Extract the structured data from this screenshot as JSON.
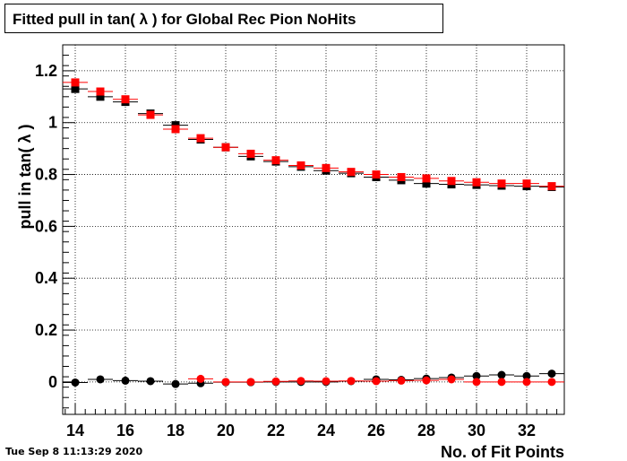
{
  "title": "Fitted pull in tan( λ ) for Global Rec Pion NoHits",
  "timestamp": "Tue Sep  8 11:13:29 2020",
  "chart_data": {
    "type": "scatter",
    "title": "Fitted pull in tan( λ ) for Global Rec Pion NoHits",
    "xlabel": "No. of Fit Points",
    "ylabel": "pull in tan( λ )",
    "xlim": [
      13.5,
      33.5
    ],
    "ylim": [
      -0.125,
      1.3
    ],
    "x_ticks": [
      14,
      16,
      18,
      20,
      22,
      24,
      26,
      28,
      30,
      32
    ],
    "y_ticks": [
      0,
      0.2,
      0.4,
      0.6,
      0.8,
      1,
      1.2
    ],
    "x_tick_labels": [
      "14",
      "16",
      "18",
      "20",
      "22",
      "24",
      "26",
      "28",
      "30",
      "32"
    ],
    "y_tick_labels": [
      "0",
      "0.2",
      "0.4",
      "0.6",
      "0.8",
      "1",
      "1.2"
    ],
    "grid": true,
    "x": [
      14,
      15,
      16,
      17,
      18,
      19,
      20,
      21,
      22,
      23,
      24,
      25,
      26,
      27,
      28,
      29,
      30,
      31,
      32,
      33
    ],
    "series": [
      {
        "marker": "square",
        "color": "#000000",
        "values": [
          1.13,
          1.1,
          1.08,
          1.035,
          0.99,
          0.935,
          0.905,
          0.87,
          0.85,
          0.83,
          0.815,
          0.805,
          0.79,
          0.778,
          0.765,
          0.762,
          0.76,
          0.757,
          0.755,
          0.752
        ]
      },
      {
        "marker": "square",
        "color": "#ff0000",
        "values": [
          1.155,
          1.12,
          1.09,
          1.03,
          0.975,
          0.94,
          0.905,
          0.88,
          0.855,
          0.835,
          0.825,
          0.81,
          0.8,
          0.79,
          0.785,
          0.775,
          0.77,
          0.765,
          0.765,
          0.755
        ]
      },
      {
        "marker": "circle",
        "color": "#000000",
        "values": [
          -0.002,
          0.01,
          0.005,
          0.003,
          -0.008,
          -0.005,
          -0.001,
          -0.001,
          0.0,
          0.0,
          0.0,
          0.003,
          0.01,
          0.008,
          0.013,
          0.017,
          0.023,
          0.027,
          0.023,
          0.032
        ]
      },
      {
        "marker": "circle",
        "color": "#ff0000",
        "values": [
          null,
          null,
          null,
          null,
          null,
          0.012,
          0.0,
          0.0,
          0.002,
          0.004,
          0.003,
          0.004,
          0.003,
          0.005,
          0.006,
          0.01,
          0.0,
          0.0,
          0.0,
          0.0
        ]
      }
    ]
  }
}
